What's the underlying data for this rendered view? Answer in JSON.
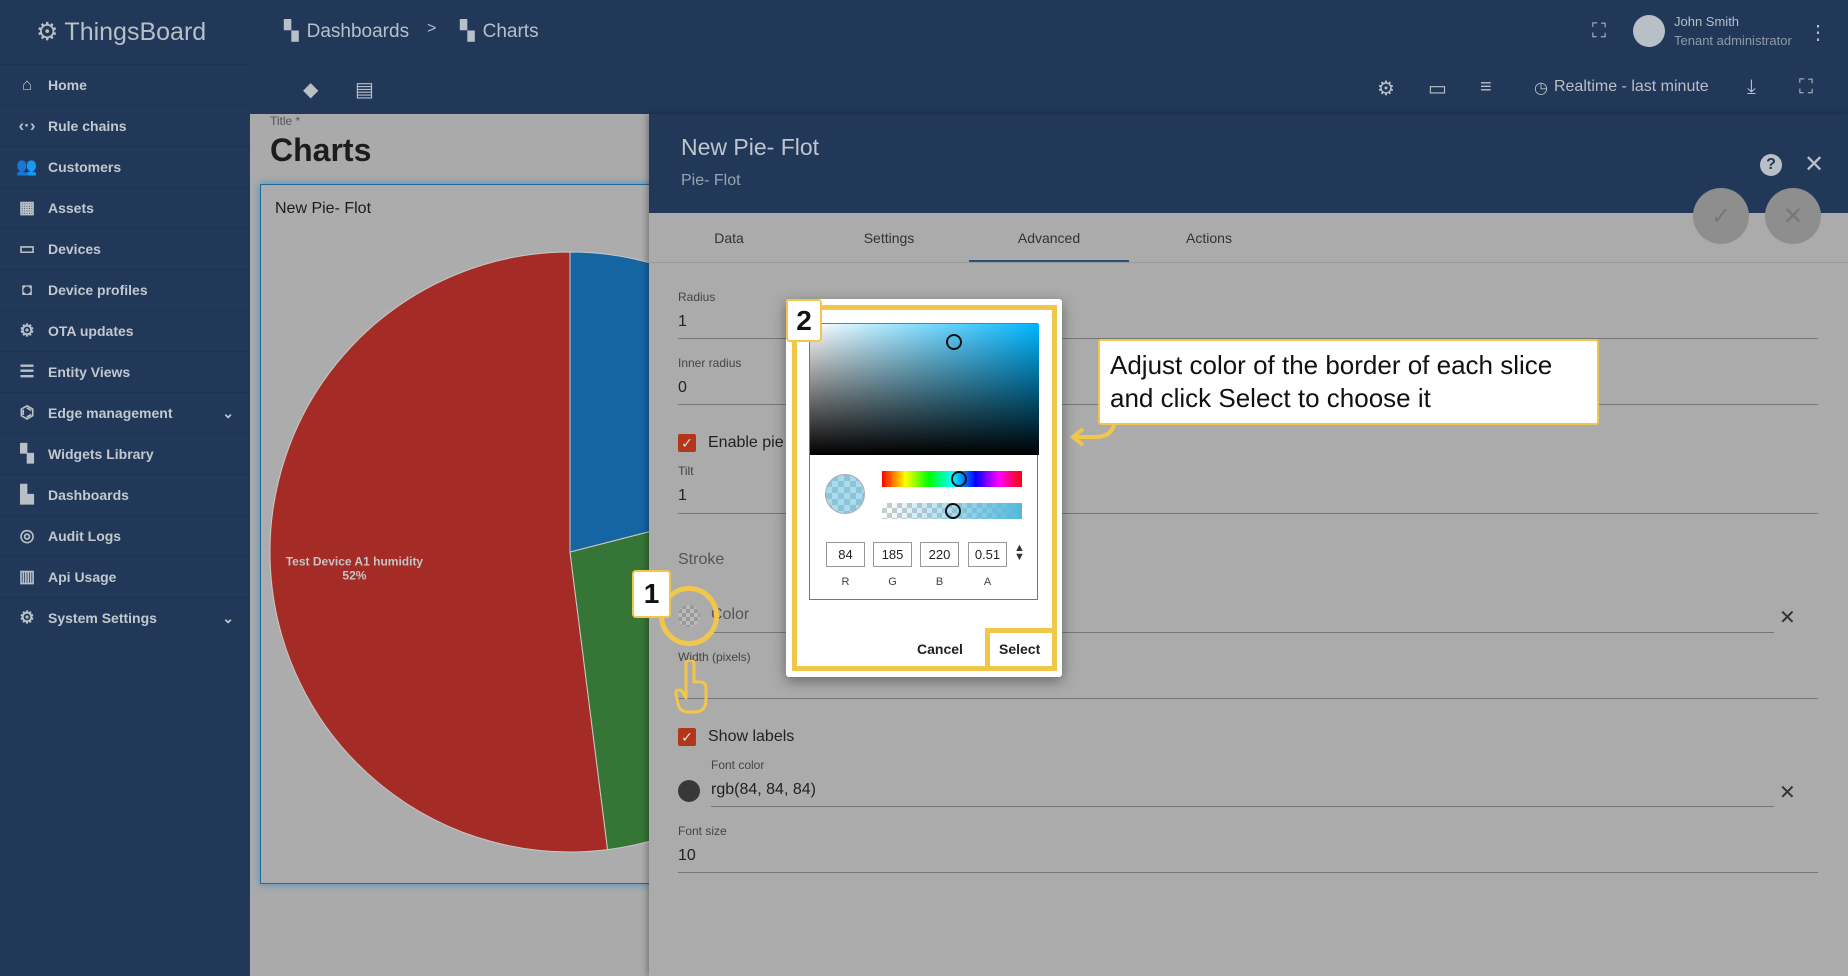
{
  "app": {
    "name": "ThingsBoard"
  },
  "breadcrumb": [
    {
      "label": "Dashboards"
    },
    {
      "label": "Charts"
    }
  ],
  "sidebar": {
    "items": [
      {
        "label": "Home",
        "icon": "home-icon",
        "glyph": "⌂"
      },
      {
        "label": "Rule chains",
        "icon": "code-icon",
        "glyph": "‹·›"
      },
      {
        "label": "Customers",
        "icon": "people-icon",
        "glyph": "👥"
      },
      {
        "label": "Assets",
        "icon": "building-icon",
        "glyph": "▦"
      },
      {
        "label": "Devices",
        "icon": "devices-icon",
        "glyph": "▭"
      },
      {
        "label": "Device profiles",
        "icon": "profile-icon",
        "glyph": "◘"
      },
      {
        "label": "OTA updates",
        "icon": "chip-icon",
        "glyph": "⚙"
      },
      {
        "label": "Entity Views",
        "icon": "list-icon",
        "glyph": "☰"
      },
      {
        "label": "Edge management",
        "icon": "router-icon",
        "glyph": "⌬",
        "expandable": true
      },
      {
        "label": "Widgets Library",
        "icon": "widgets-icon",
        "glyph": "▚"
      },
      {
        "label": "Dashboards",
        "icon": "dashboard-icon",
        "glyph": "▙"
      },
      {
        "label": "Audit Logs",
        "icon": "track-changes-icon",
        "glyph": "◎"
      },
      {
        "label": "Api Usage",
        "icon": "insert-chart-icon",
        "glyph": "▥"
      },
      {
        "label": "System Settings",
        "icon": "settings-icon",
        "glyph": "⚙",
        "expandable": true
      }
    ]
  },
  "user": {
    "name": "John Smith",
    "role": "Tenant administrator"
  },
  "toolbar": {
    "timewindow": "Realtime - last minute"
  },
  "dashboard": {
    "title_label": "Title *",
    "title": "Charts"
  },
  "widget": {
    "title": "New Pie- Flot",
    "pie": {
      "slices": [
        {
          "label": "Test Device A1 humidity",
          "percent_label": "52%",
          "value": 52,
          "color": "#a52c26"
        },
        {
          "value": 27,
          "color": "#357535"
        },
        {
          "value": 21,
          "color": "#1565a3"
        }
      ]
    }
  },
  "panel": {
    "title": "New Pie- Flot",
    "subtitle": "Pie- Flot",
    "tabs": [
      {
        "label": "Data"
      },
      {
        "label": "Settings"
      },
      {
        "label": "Advanced",
        "active": true
      },
      {
        "label": "Actions"
      }
    ],
    "fields": {
      "radius_label": "Radius",
      "radius": "1",
      "inner_radius_label": "Inner radius",
      "inner_radius": "0",
      "enable_pie": "Enable pie",
      "tilt_label": "Tilt",
      "tilt": "1",
      "stroke": "Stroke",
      "color_label": "Color",
      "width_label": "Width (pixels)",
      "show_labels": "Show labels",
      "font_color_label": "Font color",
      "font_color": "rgb(84, 84, 84)",
      "font_size_label": "Font size",
      "font_size": "10"
    }
  },
  "color_picker": {
    "r": "84",
    "g": "185",
    "b": "220",
    "a": "0.51",
    "r_label": "R",
    "g_label": "G",
    "b_label": "B",
    "a_label": "A",
    "cancel": "Cancel",
    "select": "Select",
    "hue_percent": 55,
    "alpha_percent": 51
  },
  "annotations": {
    "step1": "1",
    "step2": "2",
    "callout": "Adjust color of the border of each slice and click Select to choose it",
    "highlight_color": "#f2c64a"
  }
}
